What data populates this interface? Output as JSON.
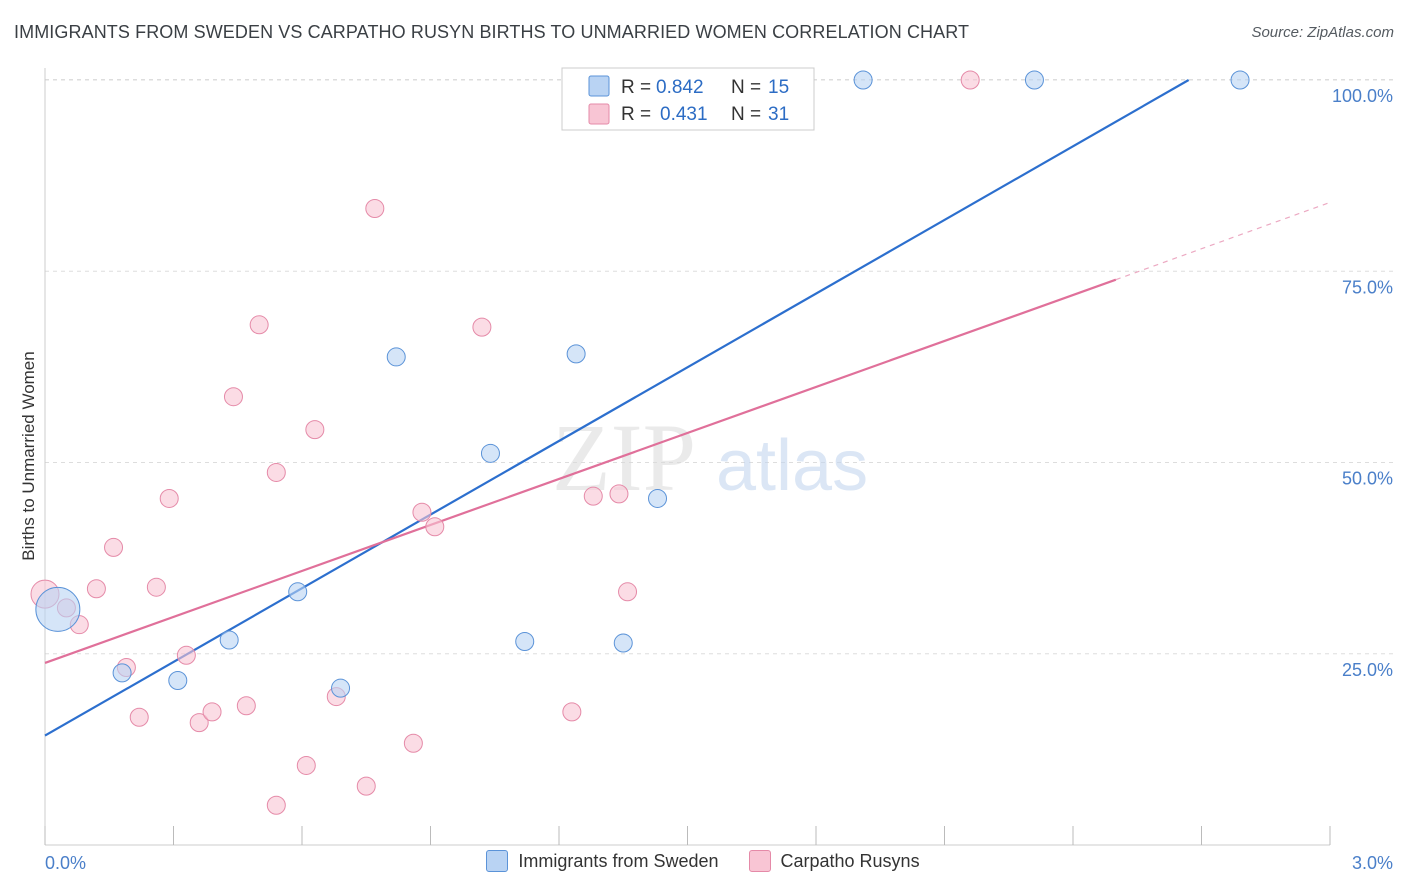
{
  "title": "IMMIGRANTS FROM SWEDEN VS CARPATHO RUSYN BIRTHS TO UNMARRIED WOMEN CORRELATION CHART",
  "source": "Source: ZipAtlas.com",
  "watermark": {
    "zip": "ZIP",
    "atlas": "atlas"
  },
  "legend": {
    "rows": [
      {
        "r_label": "R = ",
        "r_value": "0.842",
        "n_label": "N = ",
        "n_value": "15"
      },
      {
        "r_label": "R = ",
        "r_value": "0.431",
        "n_label": "N = ",
        "n_value": "31"
      }
    ]
  },
  "bottom_legend": [
    "Immigrants from Sweden",
    "Carpatho Rusyns"
  ],
  "colors": {
    "blue_fill": "#b9d3f3",
    "blue_stroke": "#5b93d8",
    "blue_line": "#2c6fce",
    "pink_fill": "#f8c5d4",
    "pink_stroke": "#e58aa8",
    "pink_line": "#e0709a",
    "grid": "#dddddd",
    "tick_label": "#4a7fc9"
  },
  "chart_data": {
    "type": "scatter",
    "xlabel": "",
    "ylabel": "Births to Unmarried Women",
    "xlim": [
      0,
      3.0
    ],
    "ylim": [
      0,
      100
    ],
    "x_tick_labels": [
      "0.0%",
      "3.0%"
    ],
    "y_ticks": [
      25,
      50,
      75,
      100
    ],
    "y_tick_labels": [
      "25.0%",
      "50.0%",
      "75.0%",
      "100.0%"
    ],
    "grid": true,
    "series": [
      {
        "name": "Immigrants from Sweden",
        "color": "blue",
        "r": 0.842,
        "n": 15,
        "points": [
          [
            0.03,
            30.8,
            22
          ],
          [
            0.18,
            22.5,
            9
          ],
          [
            0.31,
            21.5,
            9
          ],
          [
            0.43,
            26.8,
            9
          ],
          [
            0.59,
            33.1,
            9
          ],
          [
            0.69,
            20.5,
            9
          ],
          [
            0.82,
            63.8,
            9
          ],
          [
            1.04,
            51.2,
            9
          ],
          [
            1.12,
            26.6,
            9
          ],
          [
            1.24,
            64.2,
            9
          ],
          [
            1.35,
            26.4,
            9
          ],
          [
            1.43,
            45.3,
            9
          ],
          [
            1.91,
            100,
            9
          ],
          [
            2.31,
            100,
            9
          ],
          [
            2.79,
            100,
            9
          ]
        ],
        "trend": {
          "x": [
            0,
            2.67
          ],
          "y": [
            14.3,
            100
          ]
        }
      },
      {
        "name": "Carpatho Rusyns",
        "color": "pink",
        "r": 0.431,
        "n": 31,
        "points": [
          [
            0.0,
            32.8,
            14
          ],
          [
            0.05,
            31.0,
            9
          ],
          [
            0.08,
            28.8,
            9
          ],
          [
            0.12,
            33.5,
            9
          ],
          [
            0.16,
            38.9,
            9
          ],
          [
            0.19,
            23.2,
            9
          ],
          [
            0.22,
            16.7,
            9
          ],
          [
            0.26,
            33.7,
            9
          ],
          [
            0.29,
            45.3,
            9
          ],
          [
            0.33,
            24.8,
            9
          ],
          [
            0.36,
            16.0,
            9
          ],
          [
            0.39,
            17.4,
            9
          ],
          [
            0.44,
            58.6,
            9
          ],
          [
            0.47,
            18.2,
            9
          ],
          [
            0.5,
            68.0,
            9
          ],
          [
            0.54,
            5.2,
            9
          ],
          [
            0.54,
            48.7,
            9
          ],
          [
            0.61,
            10.4,
            9
          ],
          [
            0.63,
            54.3,
            9
          ],
          [
            0.68,
            19.4,
            9
          ],
          [
            0.75,
            7.7,
            9
          ],
          [
            0.77,
            83.2,
            9
          ],
          [
            0.86,
            13.3,
            9
          ],
          [
            0.88,
            43.5,
            9
          ],
          [
            0.91,
            41.6,
            9
          ],
          [
            1.02,
            67.7,
            9
          ],
          [
            1.23,
            17.4,
            9
          ],
          [
            1.28,
            45.6,
            9
          ],
          [
            1.34,
            45.9,
            9
          ],
          [
            1.36,
            33.1,
            9
          ],
          [
            2.16,
            100,
            9
          ]
        ],
        "trend": {
          "x": [
            0,
            2.5
          ],
          "y": [
            23.8,
            73.9
          ]
        },
        "trend_dashed_extension": {
          "x": [
            2.5,
            3.0
          ],
          "y": [
            73.9,
            84.0
          ]
        }
      }
    ]
  }
}
